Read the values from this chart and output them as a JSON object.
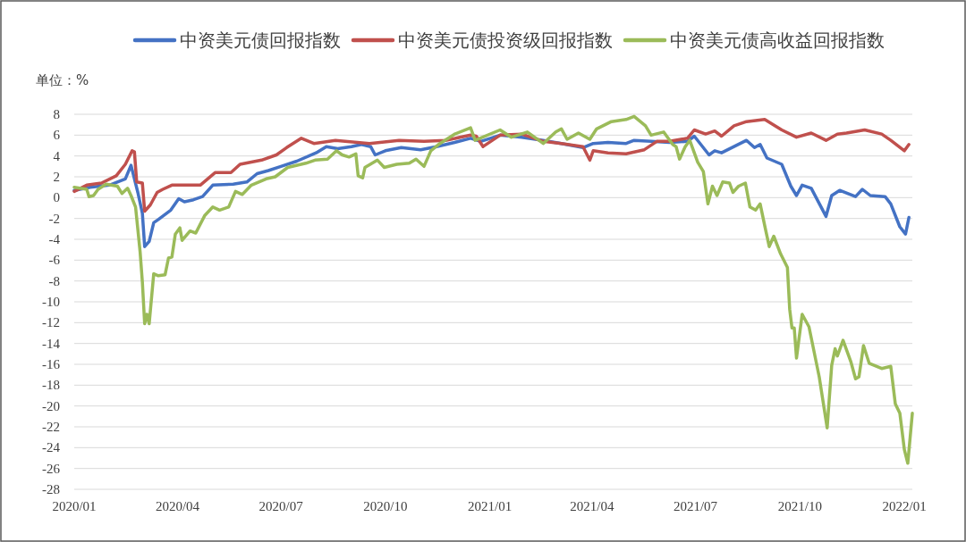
{
  "chart_data": {
    "type": "line",
    "ylabel": "单位：%",
    "legend": "top",
    "grid": "y",
    "line_style": "solid",
    "marker": "none",
    "xlim": [
      "2020-01-01",
      "2022-01-08"
    ],
    "xticks": [
      {
        "value": "2020-01-01",
        "label": "2020/01"
      },
      {
        "value": "2020-04-01",
        "label": "2020/04"
      },
      {
        "value": "2020-07-01",
        "label": "2020/07"
      },
      {
        "value": "2020-10-01",
        "label": "2020/10"
      },
      {
        "value": "2021-01-01",
        "label": "2021/01"
      },
      {
        "value": "2021-04-01",
        "label": "2021/04"
      },
      {
        "value": "2021-07-01",
        "label": "2021/07"
      },
      {
        "value": "2021-10-01",
        "label": "2021/10"
      },
      {
        "value": "2022-01-01",
        "label": "2022/01"
      }
    ],
    "ylim": [
      -28,
      8
    ],
    "yticks": [
      -28,
      -26,
      -24,
      -22,
      -20,
      -18,
      -16,
      -14,
      -12,
      -10,
      -8,
      -6,
      -4,
      -2,
      0,
      2,
      4,
      6,
      8
    ],
    "series": [
      {
        "name": "中资美元债回报指数",
        "color": "#4472c4",
        "x": [
          "2020-01-01",
          "2020-01-15",
          "2020-02-01",
          "2020-02-15",
          "2020-02-20",
          "2020-02-26",
          "2020-03-01",
          "2020-03-03",
          "2020-03-07",
          "2020-03-11",
          "2020-03-15",
          "2020-03-26",
          "2020-04-02",
          "2020-04-07",
          "2020-04-15",
          "2020-04-23",
          "2020-05-02",
          "2020-05-20",
          "2020-06-01",
          "2020-06-10",
          "2020-06-20",
          "2020-07-01",
          "2020-07-15",
          "2020-08-01",
          "2020-08-10",
          "2020-08-20",
          "2020-09-01",
          "2020-09-10",
          "2020-09-18",
          "2020-09-22",
          "2020-10-01",
          "2020-10-15",
          "2020-11-01",
          "2020-11-15",
          "2020-12-01",
          "2020-12-15",
          "2020-12-24",
          "2021-01-10",
          "2021-01-29",
          "2021-02-17",
          "2021-03-05",
          "2021-03-24",
          "2021-04-02",
          "2021-04-15",
          "2021-05-01",
          "2021-05-08",
          "2021-05-23",
          "2021-06-08",
          "2021-06-24",
          "2021-06-30",
          "2021-07-13",
          "2021-07-18",
          "2021-07-24",
          "2021-08-15",
          "2021-08-22",
          "2021-08-27",
          "2021-09-02",
          "2021-09-15",
          "2021-09-23",
          "2021-09-28",
          "2021-10-03",
          "2021-10-11",
          "2021-10-24",
          "2021-10-29",
          "2021-11-05",
          "2021-11-19",
          "2021-11-25",
          "2021-12-02",
          "2021-12-15",
          "2021-12-20",
          "2021-12-28",
          "2022-01-02",
          "2022-01-05"
        ],
        "values": [
          0.7,
          1.0,
          1.2,
          1.8,
          3.1,
          0.5,
          -1.5,
          -4.7,
          -4.2,
          -2.4,
          -2.1,
          -1.2,
          -0.1,
          -0.4,
          -0.2,
          0.1,
          1.2,
          1.3,
          1.5,
          2.3,
          2.6,
          3.0,
          3.5,
          4.3,
          4.9,
          4.7,
          4.9,
          5.1,
          4.9,
          4.1,
          4.5,
          4.8,
          4.6,
          4.9,
          5.3,
          5.7,
          5.4,
          6.0,
          5.8,
          5.5,
          5.2,
          4.8,
          5.2,
          5.3,
          5.2,
          5.5,
          5.4,
          5.3,
          5.4,
          5.9,
          4.1,
          4.5,
          4.3,
          5.5,
          4.8,
          5.1,
          3.8,
          3.2,
          1.1,
          0.2,
          1.2,
          0.9,
          -1.8,
          0.2,
          0.7,
          0.1,
          0.8,
          0.2,
          0.1,
          -0.6,
          -2.8,
          -3.5,
          -1.9
        ]
      },
      {
        "name": "中资美元债投资级回报指数",
        "color": "#c0504d",
        "x": [
          "2020-01-01",
          "2020-01-12",
          "2020-01-25",
          "2020-02-07",
          "2020-02-15",
          "2020-02-21",
          "2020-02-23",
          "2020-02-25",
          "2020-03-01",
          "2020-03-03",
          "2020-03-08",
          "2020-03-14",
          "2020-03-19",
          "2020-03-27",
          "2020-04-02",
          "2020-04-21",
          "2020-05-04",
          "2020-05-18",
          "2020-05-26",
          "2020-06-14",
          "2020-06-27",
          "2020-07-06",
          "2020-07-19",
          "2020-07-30",
          "2020-08-18",
          "2020-09-17",
          "2020-10-13",
          "2020-11-04",
          "2020-11-23",
          "2020-12-15",
          "2020-12-20",
          "2020-12-26",
          "2021-01-10",
          "2021-01-29",
          "2021-02-17",
          "2021-03-05",
          "2021-03-24",
          "2021-03-30",
          "2021-04-02",
          "2021-04-15",
          "2021-05-01",
          "2021-05-17",
          "2021-05-28",
          "2021-06-08",
          "2021-06-24",
          "2021-06-30",
          "2021-07-10",
          "2021-07-18",
          "2021-07-24",
          "2021-08-04",
          "2021-08-15",
          "2021-08-31",
          "2021-09-15",
          "2021-09-28",
          "2021-10-11",
          "2021-10-24",
          "2021-11-03",
          "2021-11-11",
          "2021-11-27",
          "2021-12-12",
          "2021-12-20",
          "2022-01-01",
          "2022-01-05"
        ],
        "values": [
          0.6,
          1.2,
          1.4,
          2.1,
          3.2,
          4.5,
          4.4,
          1.5,
          1.4,
          -1.3,
          -0.7,
          0.5,
          0.8,
          1.2,
          1.2,
          1.2,
          2.4,
          2.4,
          3.2,
          3.6,
          4.1,
          4.8,
          5.7,
          5.2,
          5.5,
          5.2,
          5.5,
          5.4,
          5.5,
          6.0,
          5.9,
          4.9,
          6.0,
          6.1,
          5.4,
          5.2,
          4.9,
          3.6,
          4.5,
          4.3,
          4.2,
          4.6,
          5.4,
          5.4,
          5.7,
          6.5,
          6.1,
          6.4,
          5.9,
          6.9,
          7.3,
          7.5,
          6.5,
          5.8,
          6.2,
          5.5,
          6.1,
          6.2,
          6.5,
          6.1,
          5.5,
          4.5,
          5.1
        ]
      },
      {
        "name": "中资美元债高收益回报指数",
        "color": "#9bbb59",
        "x": [
          "2020-01-01",
          "2020-01-12",
          "2020-01-14",
          "2020-01-18",
          "2020-01-22",
          "2020-01-29",
          "2020-02-08",
          "2020-02-12",
          "2020-02-17",
          "2020-02-20",
          "2020-02-24",
          "2020-02-28",
          "2020-03-01",
          "2020-03-03",
          "2020-03-05",
          "2020-03-07",
          "2020-03-11",
          "2020-03-15",
          "2020-03-21",
          "2020-03-24",
          "2020-03-27",
          "2020-03-30",
          "2020-04-03",
          "2020-04-05",
          "2020-04-12",
          "2020-04-17",
          "2020-04-25",
          "2020-05-02",
          "2020-05-08",
          "2020-05-16",
          "2020-05-22",
          "2020-05-28",
          "2020-06-05",
          "2020-06-18",
          "2020-06-26",
          "2020-07-07",
          "2020-07-23",
          "2020-07-31",
          "2020-08-11",
          "2020-08-19",
          "2020-08-24",
          "2020-08-30",
          "2020-09-05",
          "2020-09-07",
          "2020-09-11",
          "2020-09-13",
          "2020-09-24",
          "2020-09-30",
          "2020-10-11",
          "2020-10-22",
          "2020-10-28",
          "2020-11-04",
          "2020-11-10",
          "2020-11-18",
          "2020-12-01",
          "2020-12-15",
          "2020-12-19",
          "2021-01-10",
          "2021-01-20",
          "2021-02-03",
          "2021-02-17",
          "2021-02-28",
          "2021-03-05",
          "2021-03-10",
          "2021-03-20",
          "2021-03-30",
          "2021-04-05",
          "2021-04-18",
          "2021-05-01",
          "2021-05-08",
          "2021-05-18",
          "2021-05-23",
          "2021-06-03",
          "2021-06-11",
          "2021-06-14",
          "2021-06-17",
          "2021-06-22",
          "2021-06-26",
          "2021-07-03",
          "2021-07-08",
          "2021-07-12",
          "2021-07-16",
          "2021-07-20",
          "2021-07-25",
          "2021-07-31",
          "2021-08-03",
          "2021-08-08",
          "2021-08-14",
          "2021-08-18",
          "2021-08-23",
          "2021-08-27",
          "2021-09-01",
          "2021-09-04",
          "2021-09-08",
          "2021-09-14",
          "2021-09-20",
          "2021-09-22",
          "2021-09-24",
          "2021-09-26",
          "2021-09-28",
          "2021-10-03",
          "2021-10-09",
          "2021-10-18",
          "2021-10-25",
          "2021-10-29",
          "2021-11-01",
          "2021-11-03",
          "2021-11-08",
          "2021-11-15",
          "2021-11-19",
          "2021-11-22",
          "2021-11-26",
          "2021-12-01",
          "2021-12-12",
          "2021-12-20",
          "2021-12-24",
          "2021-12-28",
          "2022-01-01",
          "2022-01-04",
          "2022-01-08"
        ],
        "values": [
          1.0,
          0.8,
          0.1,
          0.2,
          0.8,
          1.3,
          1.1,
          0.4,
          0.9,
          0.2,
          -0.9,
          -5.2,
          -8.1,
          -12.1,
          -11.2,
          -12.1,
          -7.3,
          -7.5,
          -7.4,
          -5.8,
          -5.7,
          -3.5,
          -2.9,
          -4.1,
          -3.2,
          -3.4,
          -1.7,
          -0.9,
          -1.2,
          -0.9,
          0.6,
          0.3,
          1.2,
          1.8,
          2.0,
          2.9,
          3.3,
          3.6,
          3.7,
          4.5,
          4.1,
          3.9,
          4.2,
          2.1,
          1.9,
          2.9,
          3.6,
          2.9,
          3.2,
          3.3,
          3.7,
          3.0,
          4.5,
          5.2,
          6.1,
          6.7,
          5.5,
          6.5,
          5.8,
          6.3,
          5.2,
          6.3,
          6.6,
          5.6,
          6.2,
          5.6,
          6.6,
          7.3,
          7.5,
          7.8,
          6.9,
          6.0,
          6.3,
          5.1,
          4.9,
          3.7,
          4.9,
          5.5,
          3.4,
          2.5,
          -0.6,
          1.1,
          0.2,
          1.5,
          1.4,
          0.5,
          1.1,
          1.4,
          -0.9,
          -1.2,
          -0.6,
          -3.2,
          -4.7,
          -3.7,
          -5.4,
          -6.7,
          -10.7,
          -12.5,
          -12.5,
          -15.4,
          -11.2,
          -12.4,
          -17.2,
          -22.1,
          -16.1,
          -14.5,
          -15.2,
          -13.7,
          -15.8,
          -17.4,
          -17.2,
          -14.2,
          -15.9,
          -16.4,
          -16.2,
          -19.8,
          -20.7,
          -24.2,
          -25.5,
          -20.7
        ]
      }
    ]
  }
}
